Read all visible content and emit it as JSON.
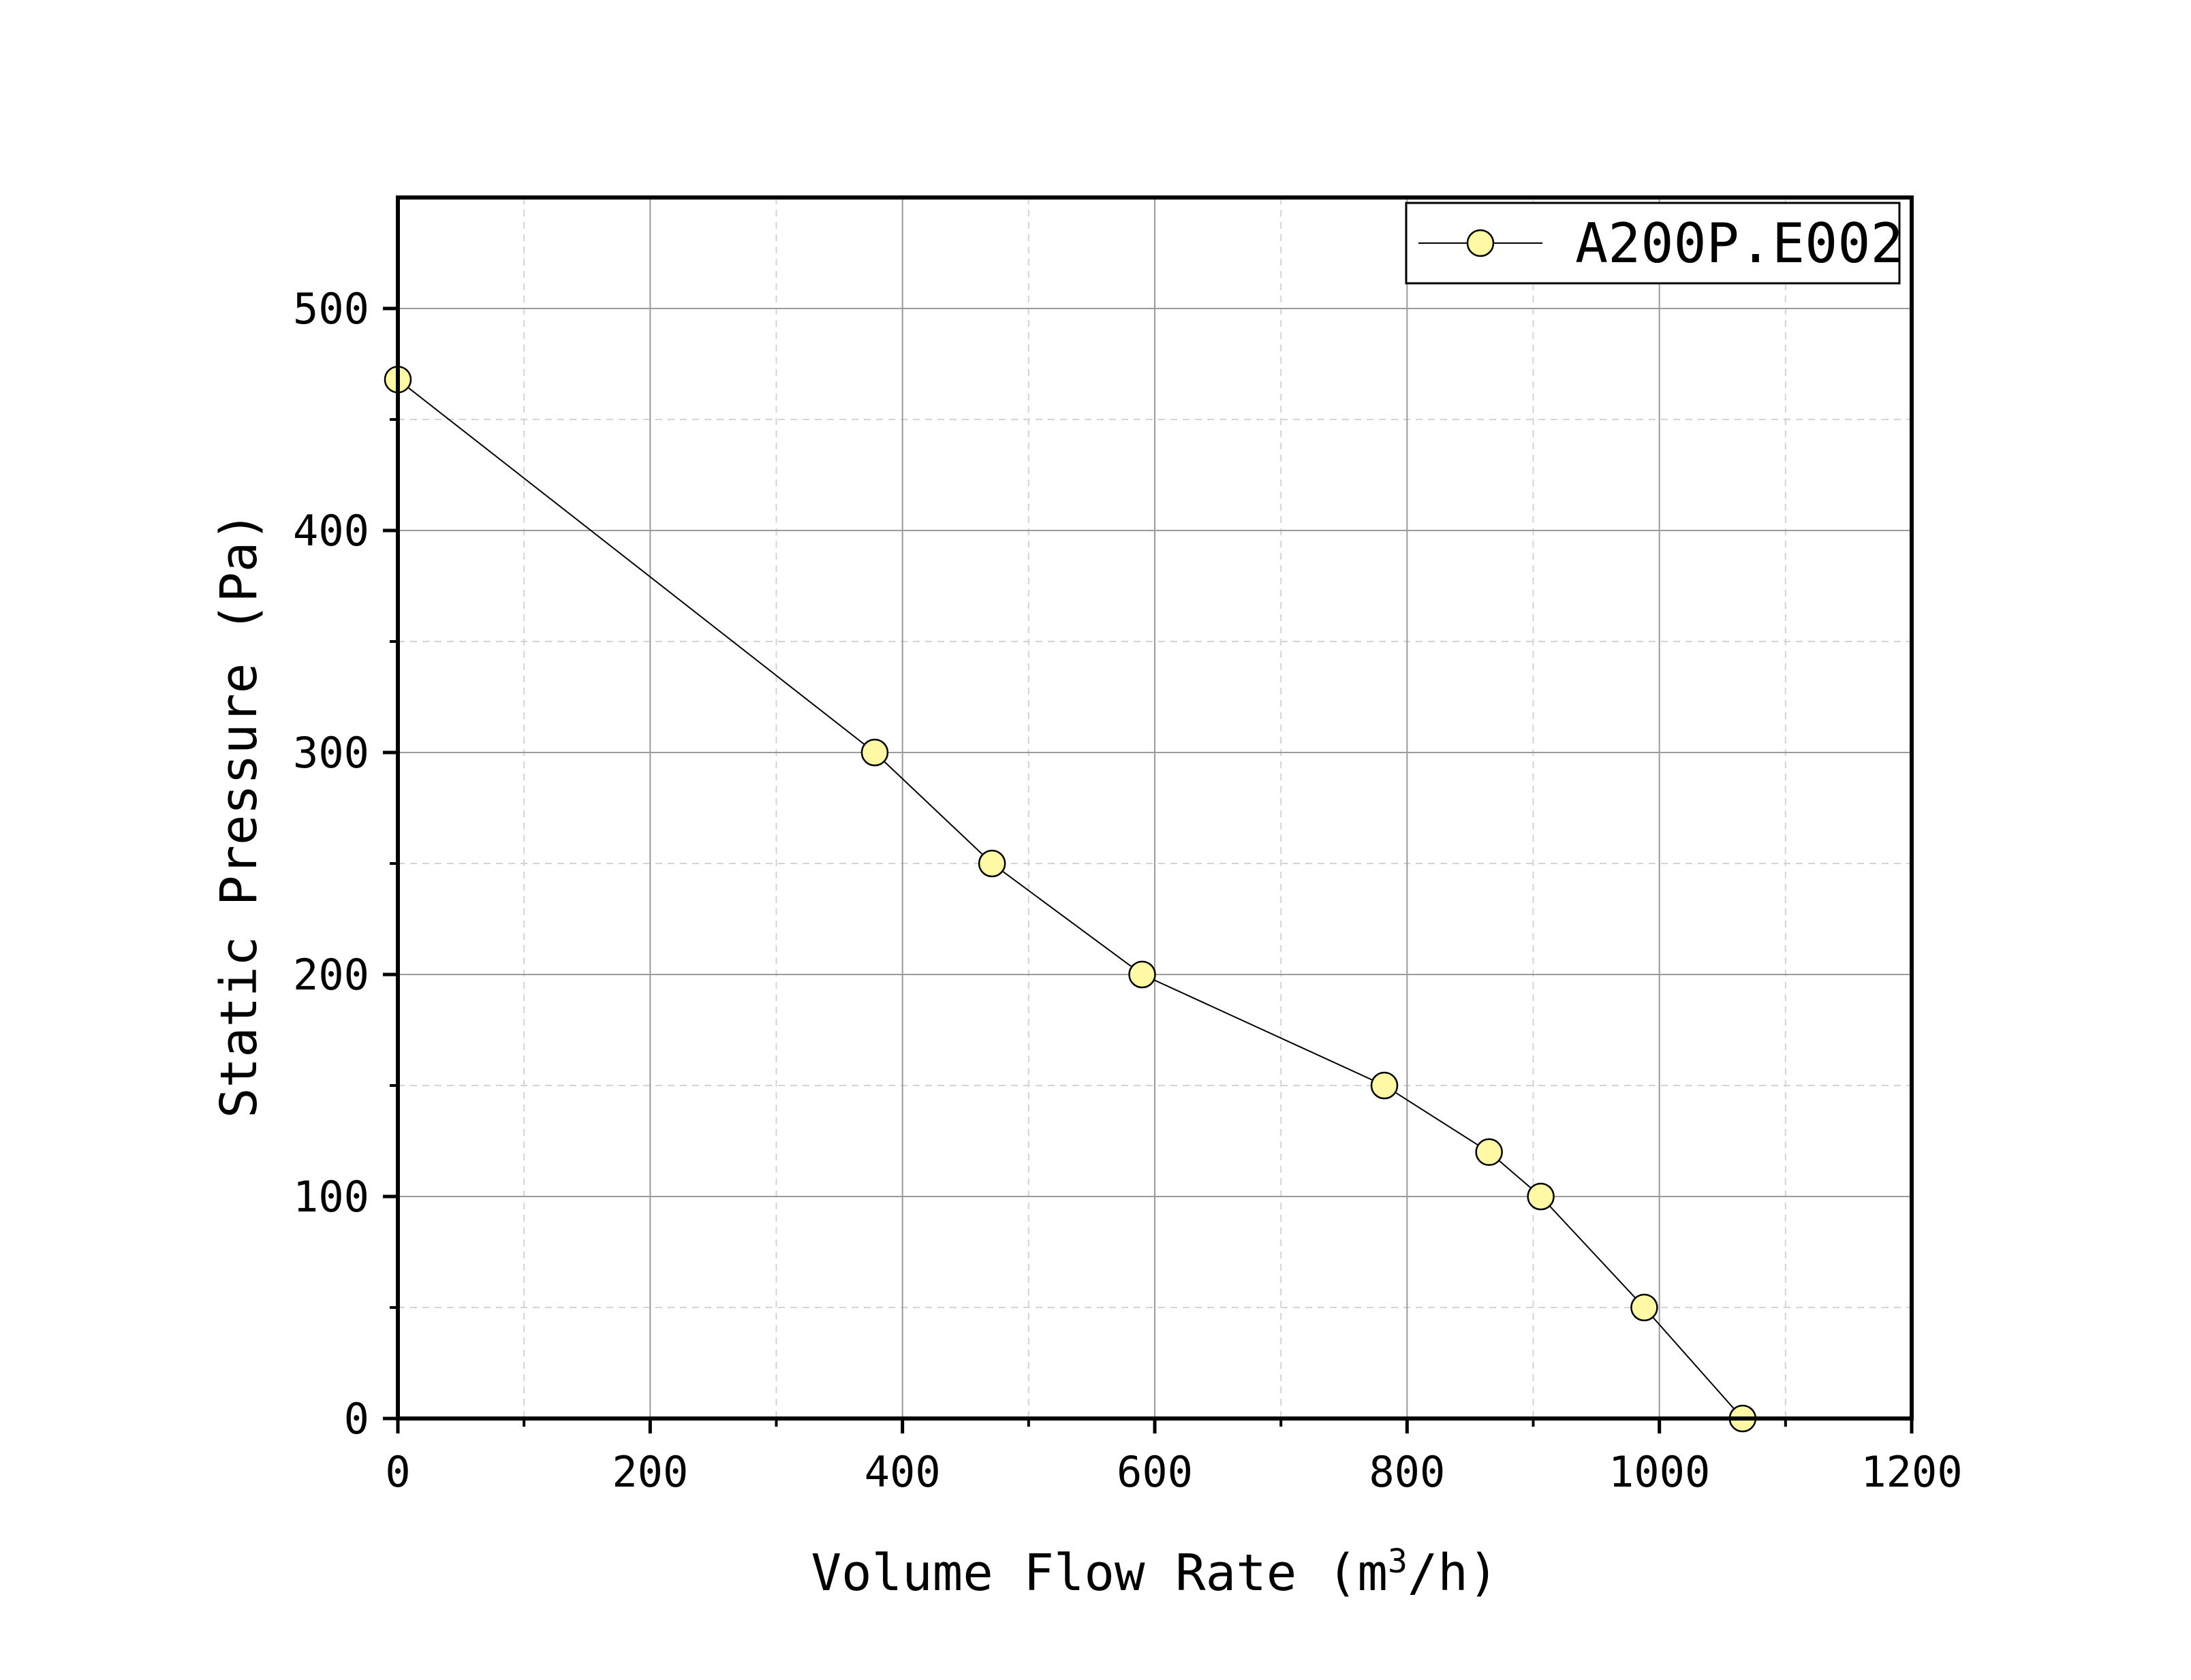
{
  "chart_data": {
    "type": "line",
    "title": "",
    "xlabel": "Volume Flow Rate (m",
    "xlabel_sup": "3",
    "xlabel_suffix": "/h)",
    "ylabel": "Static Pressure (Pa)",
    "xlim": [
      0,
      1200
    ],
    "ylim": [
      0,
      550
    ],
    "x_ticks": [
      "0",
      "200",
      "400",
      "600",
      "800",
      "1000",
      "1200"
    ],
    "y_ticks": [
      "0",
      "100",
      "200",
      "300",
      "400",
      "500"
    ],
    "x_tick_values": [
      0,
      200,
      400,
      600,
      800,
      1000,
      1200
    ],
    "y_tick_values": [
      0,
      100,
      200,
      300,
      400,
      500
    ],
    "x_minor_values": [
      100,
      300,
      500,
      700,
      900,
      1100
    ],
    "y_minor_values": [
      50,
      150,
      250,
      350,
      450
    ],
    "grid": true,
    "legend_position": "top-right",
    "series": [
      {
        "name": "A200P.E002",
        "marker": "circle",
        "marker_color": "#fff9a6",
        "line_color": "#000000",
        "points": [
          {
            "x": 0,
            "y": 468
          },
          {
            "x": 378,
            "y": 300
          },
          {
            "x": 471,
            "y": 250
          },
          {
            "x": 590,
            "y": 200
          },
          {
            "x": 782,
            "y": 150
          },
          {
            "x": 865,
            "y": 120
          },
          {
            "x": 906,
            "y": 100
          },
          {
            "x": 988,
            "y": 50
          },
          {
            "x": 1066,
            "y": 0
          }
        ]
      }
    ]
  }
}
